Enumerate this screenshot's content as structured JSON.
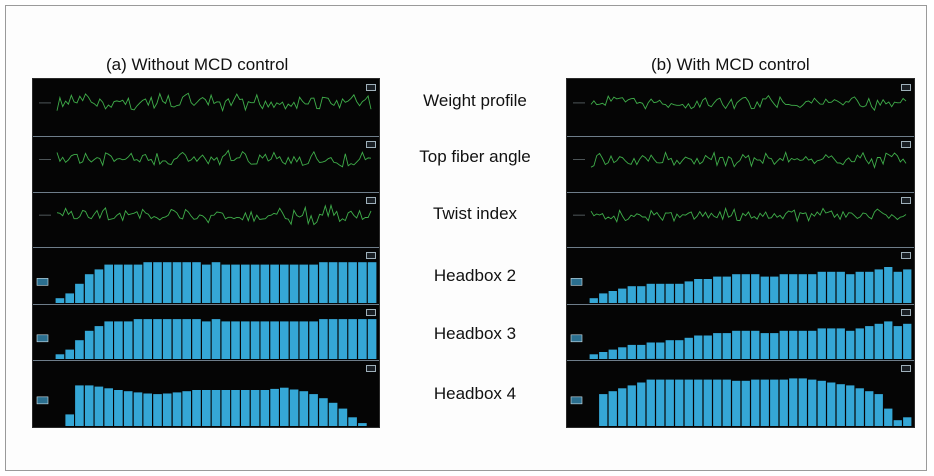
{
  "panels": [
    {
      "id": "a",
      "title": "(a) Without MCD control"
    },
    {
      "id": "b",
      "title": "(b) With MCD control"
    }
  ],
  "row_labels": [
    "Weight profile",
    "Top fiber angle",
    "Twist index",
    "Headbox 2",
    "Headbox 3",
    "Headbox 4"
  ],
  "colors": {
    "trace": "#3fae4a",
    "bar": "#35a7d6",
    "background": "#050505",
    "separator": "#6e7d8a"
  },
  "chart_data": [
    {
      "type": "bar",
      "panel": "a",
      "series": [
        {
          "values": [
            1,
            2,
            4,
            6,
            7,
            8,
            8,
            8,
            8,
            8.5,
            8.5,
            8.5,
            8.5,
            8.5,
            8.5,
            8,
            8.5,
            8,
            8,
            8,
            8,
            8,
            8,
            8,
            8,
            8,
            8,
            8.5,
            8.5,
            8.5,
            8.5,
            8.5,
            8.5
          ]
        },
        {
          "values": [
            1,
            2,
            4,
            6,
            7,
            8,
            8,
            8,
            8.5,
            8.5,
            8.5,
            8.5,
            8.5,
            8.5,
            8.5,
            8,
            8.5,
            8,
            8,
            8,
            8,
            8,
            8,
            8,
            8,
            8,
            8,
            8.5,
            8.5,
            8.5,
            8.5,
            8.5,
            8.5
          ]
        },
        {
          "values": [
            0,
            2,
            7,
            7,
            6.8,
            6.5,
            6.2,
            6,
            5.8,
            5.6,
            5.5,
            5.6,
            5.8,
            6,
            6.2,
            6.2,
            6.2,
            6.2,
            6.2,
            6.2,
            6.2,
            6.2,
            6.4,
            6.6,
            6.3,
            6,
            5.5,
            4.8,
            4,
            3,
            1.5,
            0.5,
            0
          ]
        }
      ],
      "ylim": [
        0,
        10
      ]
    },
    {
      "type": "bar",
      "panel": "b",
      "series": [
        {
          "values": [
            1,
            2,
            2.5,
            3,
            3.5,
            3.5,
            4,
            4,
            4,
            4,
            4.5,
            5,
            5,
            5.5,
            5.5,
            6,
            6,
            6,
            5.5,
            5.5,
            6,
            6,
            6,
            6,
            6.5,
            6.5,
            6.5,
            6,
            6.5,
            6.5,
            7,
            7.5,
            6.5,
            7
          ]
        },
        {
          "values": [
            1,
            1.5,
            2,
            2.5,
            3,
            3,
            3.5,
            3.5,
            4,
            4,
            4.5,
            5,
            5,
            5.5,
            5.5,
            6,
            6,
            6,
            5.5,
            5.5,
            6,
            6,
            6,
            6,
            6.5,
            6.5,
            6.5,
            6,
            6.5,
            7,
            7.5,
            8,
            7,
            7.5
          ]
        },
        {
          "values": [
            0,
            5.5,
            6,
            6.5,
            7,
            7.5,
            8,
            8,
            8,
            8,
            8,
            8,
            8,
            8,
            8,
            7.8,
            7.8,
            8,
            8,
            8,
            8,
            8.2,
            8.2,
            8,
            7.8,
            7.5,
            7.2,
            7,
            6.5,
            6,
            5.5,
            3,
            1,
            1.5
          ]
        }
      ],
      "ylim": [
        0,
        10
      ]
    }
  ]
}
